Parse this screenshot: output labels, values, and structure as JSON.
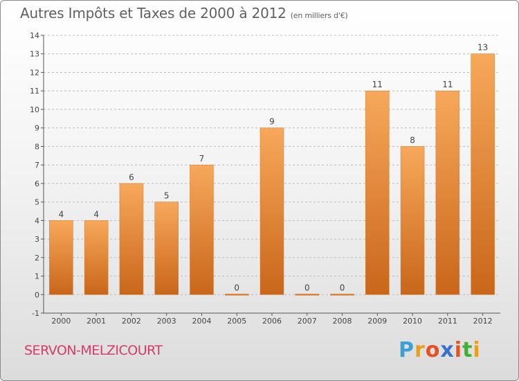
{
  "title": "Autres Impôts et Taxes de 2000 à 2012",
  "subtitle": "(en milliers d'€)",
  "commune": "SERVON-MELZICOURT",
  "logo": {
    "letters": [
      "P",
      "r",
      "o",
      "x",
      "i",
      "t",
      "i"
    ],
    "colors": [
      "#3aa0d8",
      "#e8a020",
      "#e85020",
      "#3a70d0",
      "#e85020",
      "#40b030",
      "#e8a020"
    ]
  },
  "colors": {
    "bar_light": "#f7a85a",
    "bar_dark": "#c9661a",
    "axis": "#555555",
    "grid": "#bbbbbb"
  },
  "chart_data": {
    "type": "bar",
    "categories": [
      "2000",
      "2001",
      "2002",
      "2003",
      "2004",
      "2005",
      "2006",
      "2007",
      "2008",
      "2009",
      "2010",
      "2011",
      "2012"
    ],
    "values": [
      4,
      4,
      6,
      5,
      7,
      0,
      9,
      0,
      0,
      11,
      8,
      11,
      13
    ],
    "ylim": [
      -1,
      14
    ],
    "yticks": [
      -1,
      0,
      1,
      2,
      3,
      4,
      5,
      6,
      7,
      8,
      9,
      10,
      11,
      12,
      13,
      14
    ],
    "data_labels": [
      "4",
      "4",
      "6",
      "5",
      "7",
      "0",
      "9",
      "0",
      "0",
      "11",
      "8",
      "11",
      "13"
    ]
  }
}
